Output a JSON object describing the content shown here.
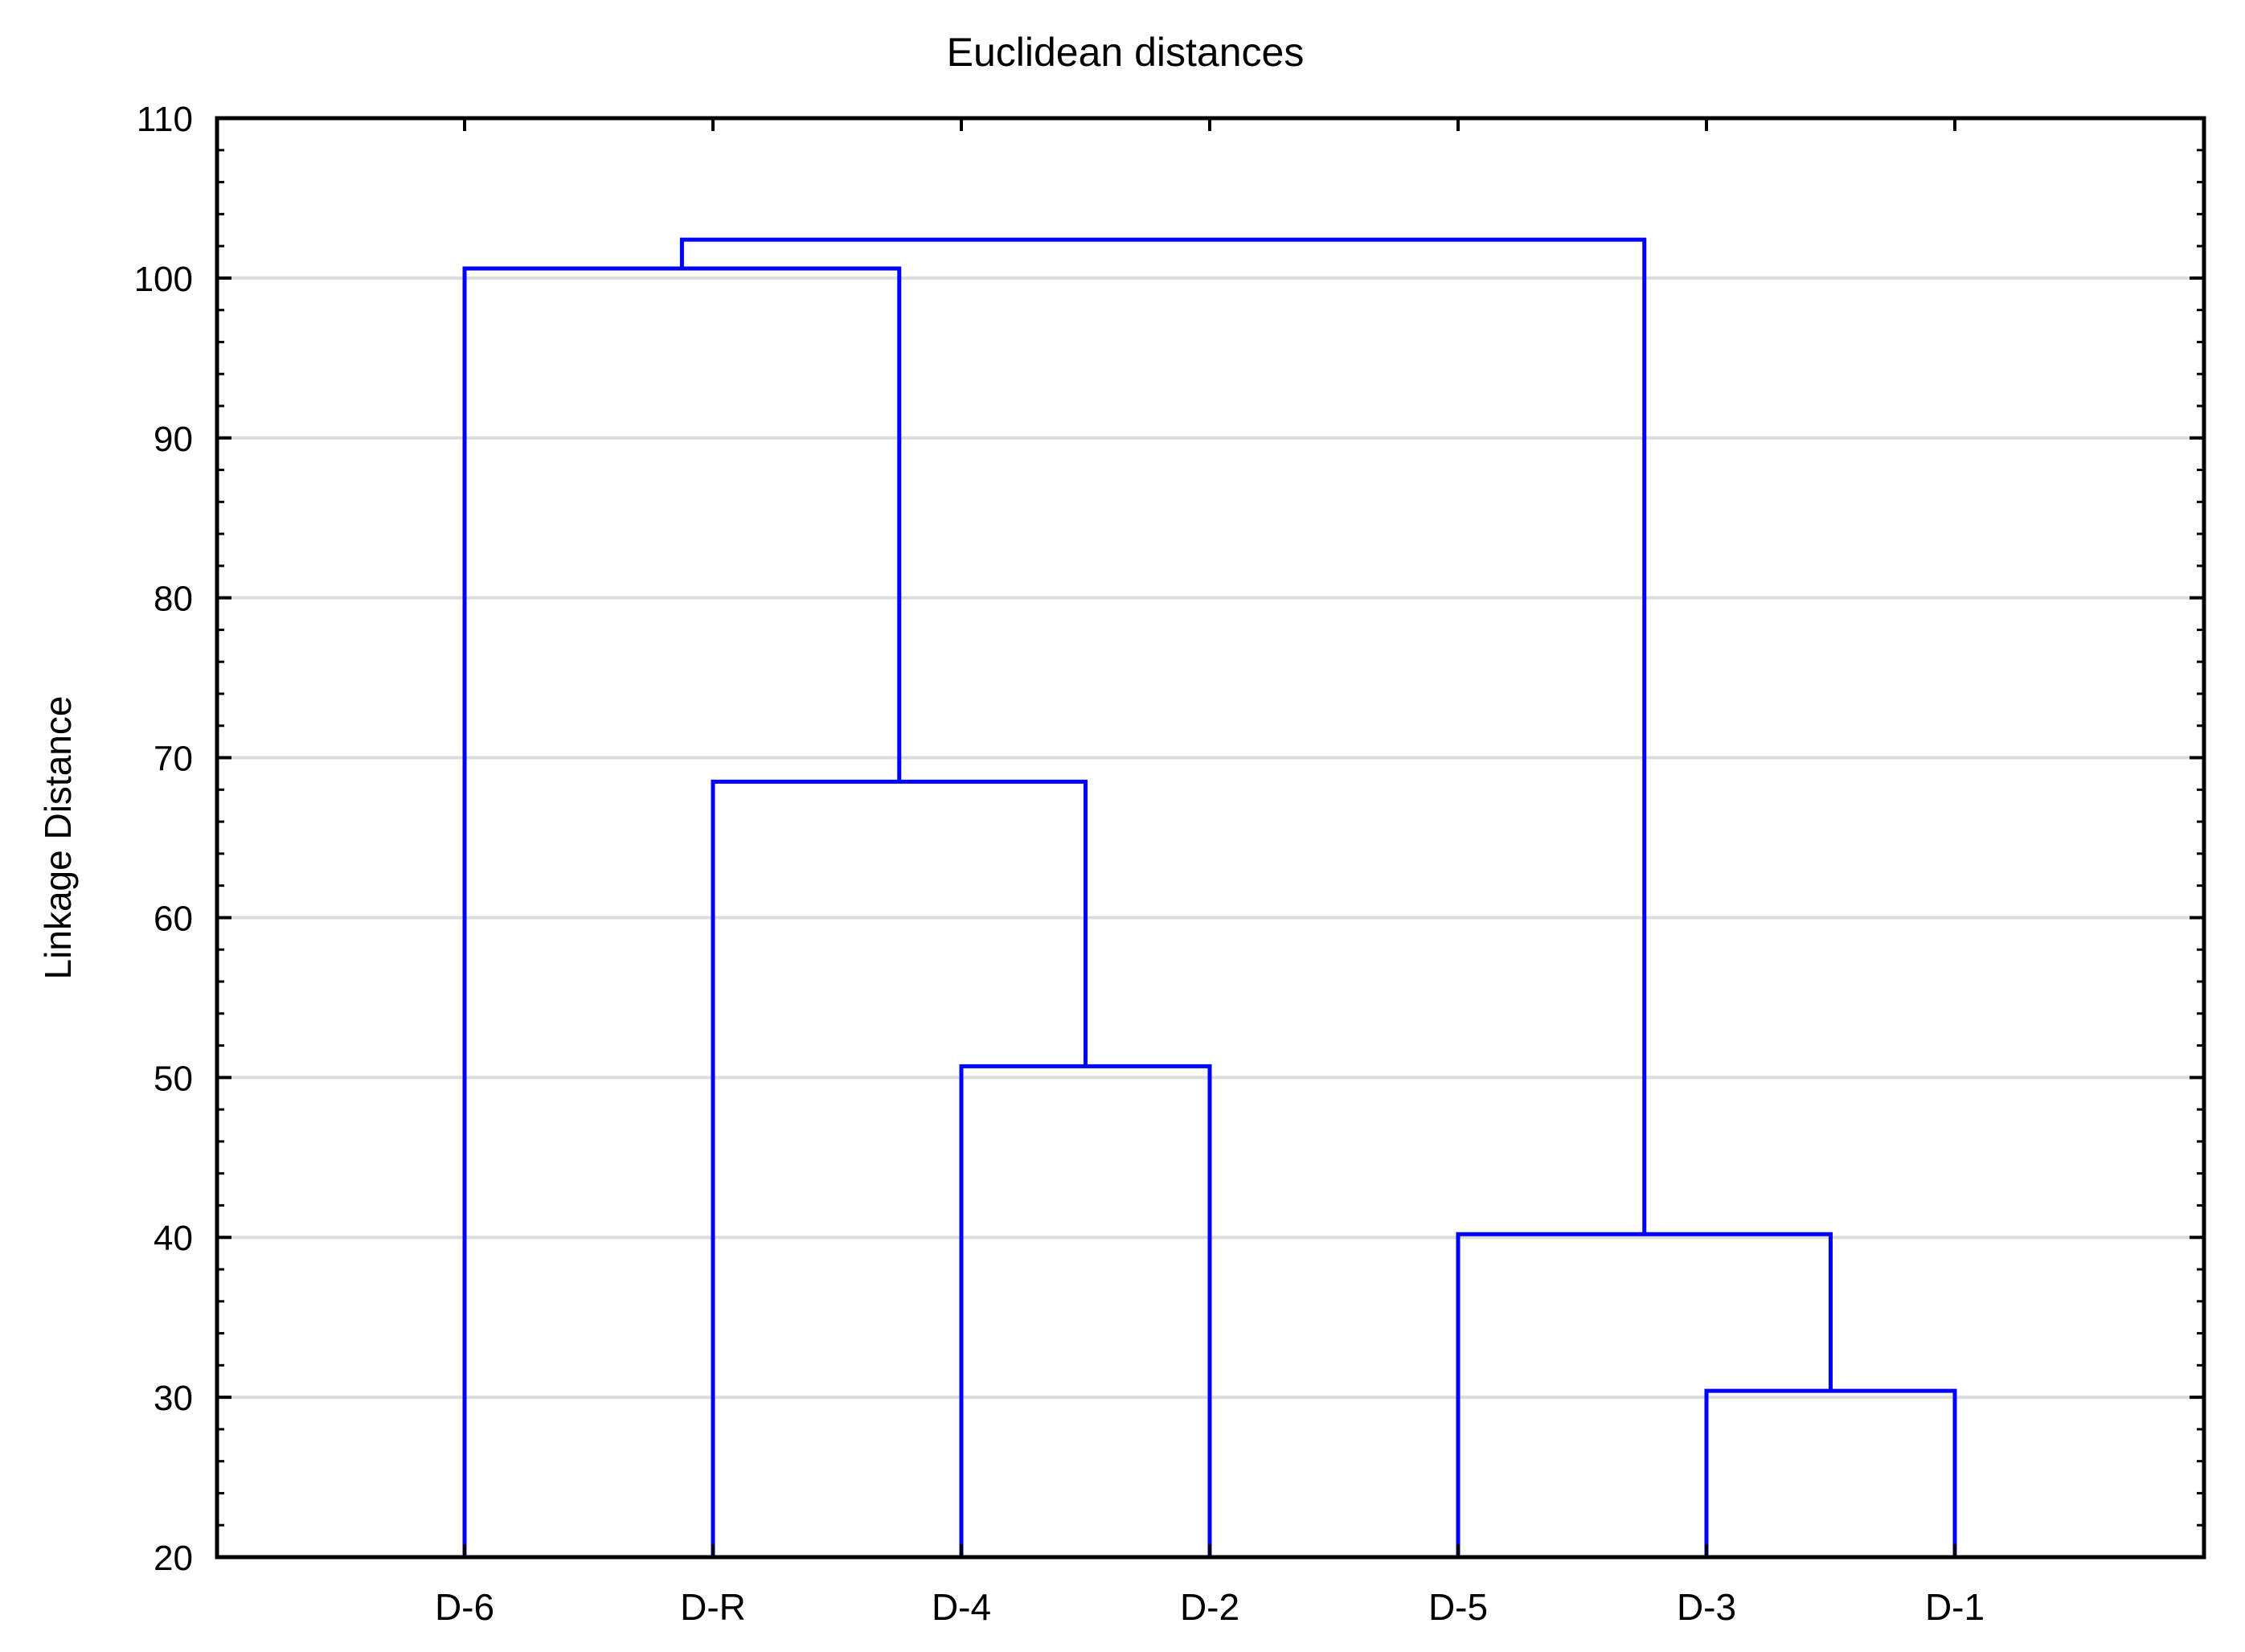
{
  "chart_data": {
    "type": "dendrogram",
    "title": "Euclidean distances",
    "ylabel": "Linkage Distance",
    "ylim": [
      20,
      110
    ],
    "yticks": [
      20,
      30,
      40,
      50,
      60,
      70,
      80,
      90,
      100,
      110
    ],
    "grid": true,
    "line_color": "#0000ff",
    "grid_color": "#dcdcdc",
    "leaves": [
      "D-6",
      "D-R",
      "D-4",
      "D-2",
      "D-5",
      "D-3",
      "D-1"
    ],
    "merges": [
      {
        "left": "D-4",
        "right": "D-2",
        "height": 50.7
      },
      {
        "left": "D-R",
        "right": "D-4+D-2",
        "height": 68.5
      },
      {
        "left": "D-6",
        "right": "D-R+D-4+D-2",
        "height": 100.6
      },
      {
        "left": "D-3",
        "right": "D-1",
        "height": 30.4
      },
      {
        "left": "D-5",
        "right": "D-3+D-1",
        "height": 40.2
      },
      {
        "left": "D-6+D-R+D-4+D-2",
        "right": "D-5+D-3+D-1",
        "height": 102.4
      }
    ]
  }
}
